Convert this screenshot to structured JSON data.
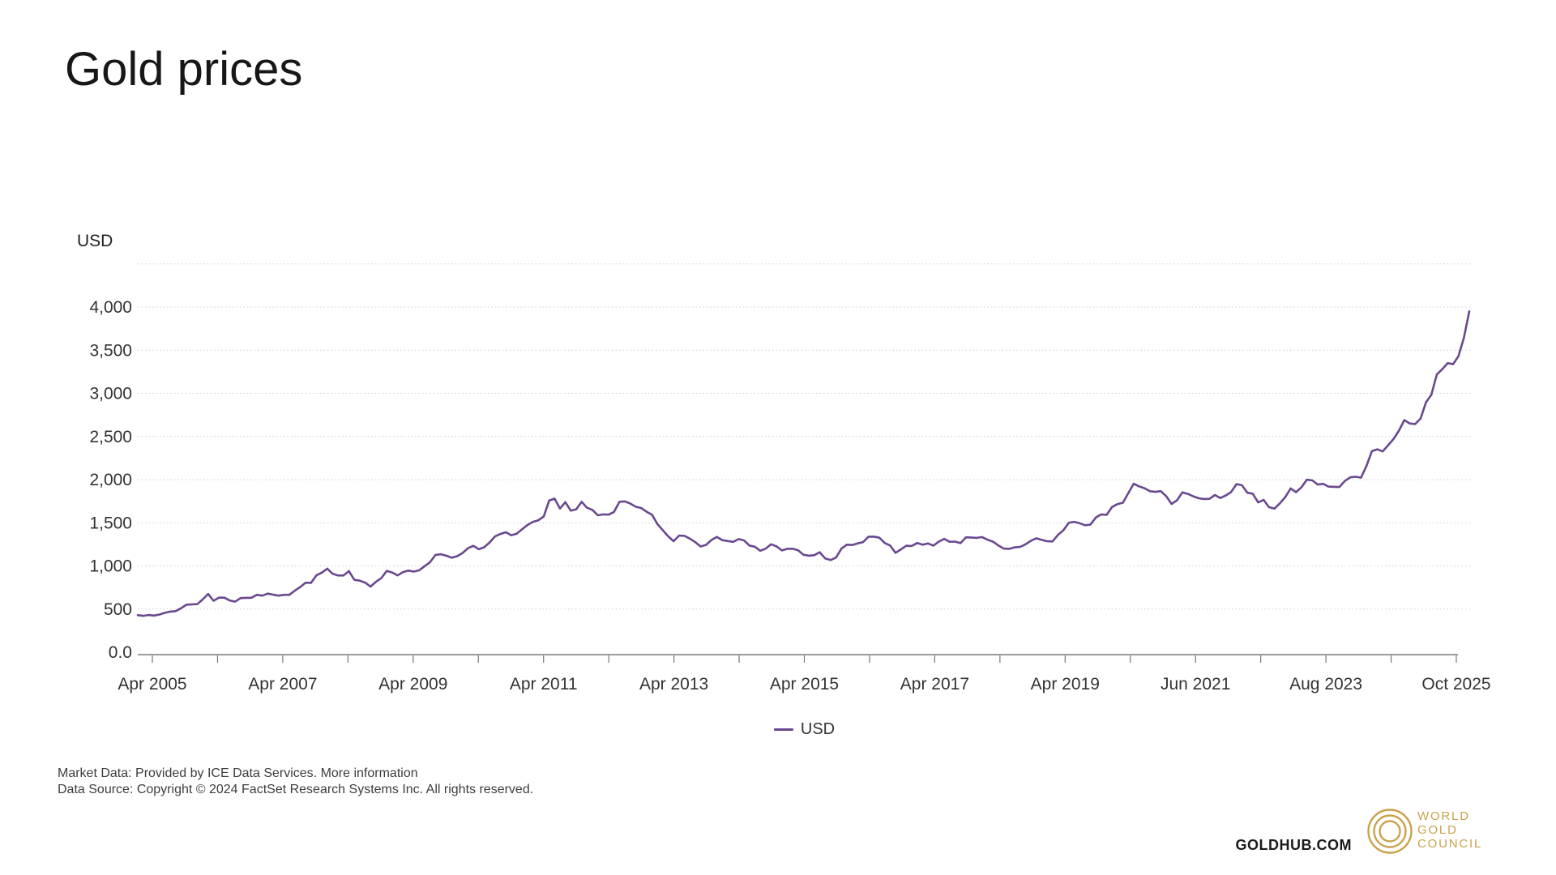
{
  "page": {
    "title": "Gold prices"
  },
  "chart": {
    "axis_unit_label": "USD",
    "legend": {
      "label": "USD"
    }
  },
  "footer": {
    "line1_prefix": "Market Data: Provided by ICE Data Services. ",
    "line1_link": "More information",
    "line2": "Data Source: Copyright © 2024 FactSet Research Systems Inc. All rights reserved."
  },
  "branding": {
    "site": "GOLDHUB.COM",
    "logo_line1": "WORLD",
    "logo_line2": "GOLD",
    "logo_line3": "COUNCIL",
    "gold_color": "#c9a24b"
  },
  "chart_data": {
    "type": "line",
    "title": "Gold prices",
    "ylabel": "USD",
    "series": [
      {
        "name": "USD",
        "color": "#6a4890"
      }
    ],
    "x_start": "2005-04",
    "x_end": "2025-10",
    "interval": "monthly",
    "x_tick_labels": [
      "Apr 2005",
      "Apr 2007",
      "Apr 2009",
      "Apr 2011",
      "Apr 2013",
      "Apr 2015",
      "Apr 2017",
      "Apr 2019",
      "Jun 2021",
      "Aug 2023",
      "Oct 2025"
    ],
    "y_tick_values": [
      0,
      500,
      1000,
      1500,
      2000,
      2500,
      3000,
      3500,
      4000
    ],
    "y_tick_labels": [
      "0.0",
      "500",
      "1,000",
      "1,500",
      "2,000",
      "2,500",
      "3,000",
      "3,500",
      "4,000"
    ],
    "ylim": [
      0,
      4500
    ],
    "grid": "horizontal-dotted",
    "legend_position": "bottom-center",
    "values": [
      429,
      422,
      431,
      424,
      437,
      456,
      470,
      476,
      510,
      550,
      555,
      557,
      611,
      675,
      596,
      633,
      632,
      599,
      586,
      627,
      630,
      631,
      665,
      655,
      679,
      667,
      655,
      665,
      665,
      713,
      755,
      806,
      803,
      890,
      922,
      968,
      910,
      889,
      889,
      940,
      839,
      829,
      807,
      761,
      816,
      858,
      943,
      924,
      890,
      929,
      946,
      934,
      949,
      997,
      1043,
      1127,
      1135,
      1118,
      1095,
      1113,
      1149,
      1205,
      1233,
      1193,
      1216,
      1271,
      1342,
      1370,
      1391,
      1356,
      1373,
      1424,
      1474,
      1511,
      1529,
      1573,
      1757,
      1780,
      1665,
      1739,
      1640,
      1656,
      1743,
      1674,
      1650,
      1587,
      1597,
      1594,
      1626,
      1744,
      1747,
      1722,
      1685,
      1671,
      1628,
      1593,
      1485,
      1414,
      1343,
      1286,
      1351,
      1348,
      1316,
      1275,
      1225,
      1244,
      1301,
      1336,
      1299,
      1288,
      1279,
      1311,
      1296,
      1237,
      1223,
      1176,
      1200,
      1251,
      1227,
      1179,
      1198,
      1199,
      1181,
      1130,
      1118,
      1125,
      1159,
      1086,
      1068,
      1097,
      1200,
      1246,
      1242,
      1261,
      1276,
      1337,
      1340,
      1327,
      1266,
      1236,
      1152,
      1192,
      1234,
      1231,
      1266,
      1246,
      1260,
      1236,
      1283,
      1314,
      1280,
      1282,
      1264,
      1331,
      1330,
      1325,
      1334,
      1303,
      1281,
      1238,
      1201,
      1198,
      1215,
      1221,
      1250,
      1291,
      1320,
      1301,
      1286,
      1284,
      1359,
      1413,
      1500,
      1511,
      1495,
      1471,
      1479,
      1561,
      1597,
      1592,
      1683,
      1716,
      1732,
      1843,
      1952,
      1922,
      1900,
      1866,
      1858,
      1867,
      1808,
      1718,
      1760,
      1853,
      1835,
      1807,
      1784,
      1776,
      1777,
      1822,
      1787,
      1816,
      1856,
      1948,
      1934,
      1848,
      1837,
      1736,
      1765,
      1681,
      1664,
      1725,
      1797,
      1898,
      1854,
      1913,
      1999,
      1992,
      1943,
      1951,
      1919,
      1916,
      1915,
      1984,
      2026,
      2034,
      2023,
      2158,
      2330,
      2351,
      2327,
      2398,
      2470,
      2568,
      2690,
      2651,
      2644,
      2708,
      2897,
      2983,
      3218,
      3280,
      3350,
      3338,
      3430,
      3642,
      3950
    ]
  }
}
